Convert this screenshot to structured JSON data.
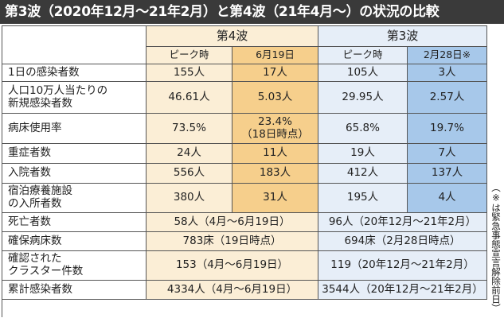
{
  "title": "第3波（2020年12月〜21年2月）と第4波（21年4月〜）の状況の比較",
  "headers": {
    "wave4": "第4波",
    "wave3": "第3波",
    "peak4": "ピーク時",
    "date4": "6月19日",
    "peak3": "ピーク時",
    "date3": "2月28日※"
  },
  "rows": {
    "daily": {
      "label": "1日の感染者数",
      "w4_peak": "155人",
      "w4_date": "17人",
      "w3_peak": "105人",
      "w3_date": "3人"
    },
    "per100k": {
      "label_line1": "人口10万人当たりの",
      "label_line2": "新規感染者数",
      "w4_peak": "46.61人",
      "w4_date": "5.03人",
      "w3_peak": "29.95人",
      "w3_date": "2.57人"
    },
    "bedrate": {
      "label": "病床使用率",
      "w4_peak": "73.5%",
      "w4_date_line1": "23.4%",
      "w4_date_line2": "（18日時点）",
      "w3_peak": "65.8%",
      "w3_date": "19.7%"
    },
    "severe": {
      "label": "重症者数",
      "w4_peak": "24人",
      "w4_date": "11人",
      "w3_peak": "19人",
      "w3_date": "7人"
    },
    "hosp": {
      "label": "入院者数",
      "w4_peak": "556人",
      "w4_date": "183人",
      "w3_peak": "412人",
      "w3_date": "137人"
    },
    "hotel": {
      "label_line1": "宿泊療養施設",
      "label_line2": "の入所者数",
      "w4_peak": "380人",
      "w4_date": "31人",
      "w3_peak": "195人",
      "w3_date": "4人"
    },
    "deaths": {
      "label": "死亡者数",
      "w4": "58人（4月〜6月19日）",
      "w3": "96人（20年12月〜21年2月）"
    },
    "beds": {
      "label": "確保病床数",
      "w4": "783床（19日時点）",
      "w3": "694床（2月28日時点）"
    },
    "clusters": {
      "label_line1": "確認された",
      "label_line2": "クラスター件数",
      "w4": "153（4月〜6月19日）",
      "w3": "119（20年12月〜21年2月）"
    },
    "cumulative": {
      "label": "累計感染者数",
      "w4": "4334人（4月〜6月19日）",
      "w3": "3544人（20年12月〜21年2月）"
    }
  },
  "note": "（※は緊急事態宣言解除前日）",
  "colors": {
    "title_bg": "#3a3a3a",
    "wave4_light": "#fbeed6",
    "wave4_dark": "#f6cf8c",
    "wave3_light": "#e6eef8",
    "wave3_dark": "#a7c8ea"
  }
}
